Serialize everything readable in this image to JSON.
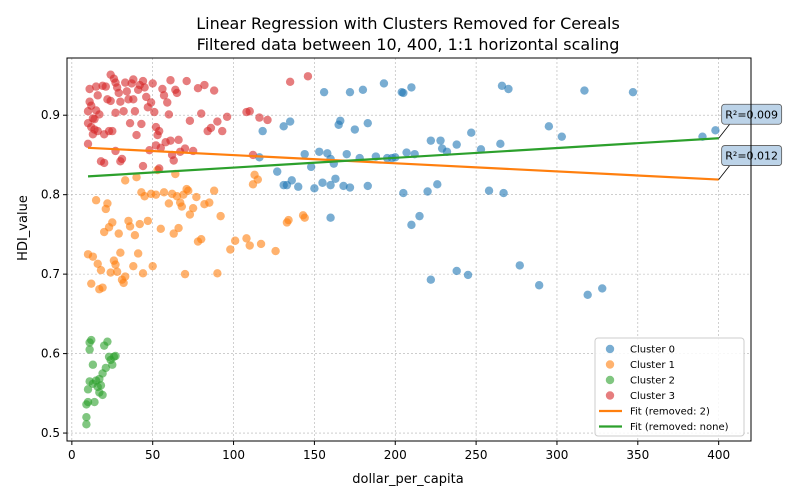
{
  "chart_data": {
    "type": "scatter",
    "title": "Linear Regression with Clusters Removed for Cereals",
    "subtitle": "Filtered data between 10, 400, 1:1 horizontal scaling",
    "xlabel": "dollar_per_capita",
    "ylabel": "HDI_value",
    "xlim": [
      -3,
      420
    ],
    "ylim": [
      0.49,
      0.972
    ],
    "x_ticks": [
      0,
      50,
      100,
      150,
      200,
      250,
      300,
      350,
      400
    ],
    "y_ticks": [
      0.5,
      0.6,
      0.7,
      0.8,
      0.9
    ],
    "grid": true,
    "legend_position": "lower-right",
    "series": [
      {
        "name": "Cluster 0",
        "color": "#1f77b4",
        "points": [
          [
            131,
            0.886
          ],
          [
            135,
            0.892
          ],
          [
            144,
            0.851
          ],
          [
            148,
            0.835
          ],
          [
            153,
            0.854
          ],
          [
            156,
            0.929
          ],
          [
            158,
            0.852
          ],
          [
            160,
            0.845
          ],
          [
            162,
            0.839
          ],
          [
            165,
            0.888
          ],
          [
            166,
            0.893
          ],
          [
            170,
            0.851
          ],
          [
            172,
            0.929
          ],
          [
            175,
            0.882
          ],
          [
            178,
            0.846
          ],
          [
            180,
            0.932
          ],
          [
            183,
            0.89
          ],
          [
            188,
            0.848
          ],
          [
            193,
            0.94
          ],
          [
            195,
            0.846
          ],
          [
            198,
            0.846
          ],
          [
            200,
            0.847
          ],
          [
            204,
            0.929
          ],
          [
            205,
            0.928
          ],
          [
            207,
            0.853
          ],
          [
            210,
            0.935
          ],
          [
            212,
            0.851
          ],
          [
            215,
            0.773
          ],
          [
            222,
            0.868
          ],
          [
            228,
            0.868
          ],
          [
            229,
            0.858
          ],
          [
            232,
            0.854
          ],
          [
            238,
            0.863
          ],
          [
            247,
            0.878
          ],
          [
            253,
            0.857
          ],
          [
            265,
            0.864
          ],
          [
            266,
            0.937
          ],
          [
            270,
            0.933
          ],
          [
            295,
            0.886
          ],
          [
            303,
            0.873
          ],
          [
            317,
            0.931
          ],
          [
            347,
            0.929
          ],
          [
            390,
            0.873
          ],
          [
            398,
            0.881
          ],
          [
            127,
            0.829
          ],
          [
            131,
            0.812
          ],
          [
            133,
            0.812
          ],
          [
            140,
            0.81
          ],
          [
            150,
            0.808
          ],
          [
            155,
            0.815
          ],
          [
            160,
            0.812
          ],
          [
            163,
            0.82
          ],
          [
            168,
            0.811
          ],
          [
            172,
            0.809
          ],
          [
            183,
            0.811
          ],
          [
            205,
            0.802
          ],
          [
            220,
            0.804
          ],
          [
            226,
            0.813
          ],
          [
            258,
            0.805
          ],
          [
            267,
            0.802
          ],
          [
            160,
            0.771
          ],
          [
            210,
            0.762
          ],
          [
            222,
            0.693
          ],
          [
            238,
            0.704
          ],
          [
            245,
            0.699
          ],
          [
            277,
            0.711
          ],
          [
            289,
            0.686
          ],
          [
            319,
            0.674
          ],
          [
            328,
            0.682
          ],
          [
            116,
            0.847
          ],
          [
            118,
            0.88
          ],
          [
            136,
            0.818
          ]
        ]
      },
      {
        "name": "Cluster 1",
        "color": "#ff7f0e",
        "points": [
          [
            10,
            0.725
          ],
          [
            12,
            0.688
          ],
          [
            13,
            0.722
          ],
          [
            15,
            0.793
          ],
          [
            16,
            0.713
          ],
          [
            17,
            0.681
          ],
          [
            18,
            0.705
          ],
          [
            19,
            0.683
          ],
          [
            20,
            0.753
          ],
          [
            21,
            0.782
          ],
          [
            22,
            0.789
          ],
          [
            23,
            0.759
          ],
          [
            24,
            0.702
          ],
          [
            25,
            0.765
          ],
          [
            26,
            0.717
          ],
          [
            27,
            0.712
          ],
          [
            28,
            0.703
          ],
          [
            29,
            0.751
          ],
          [
            30,
            0.727
          ],
          [
            31,
            0.693
          ],
          [
            32,
            0.689
          ],
          [
            33,
            0.697
          ],
          [
            33,
            0.818
          ],
          [
            35,
            0.767
          ],
          [
            36,
            0.76
          ],
          [
            38,
            0.71
          ],
          [
            39,
            0.749
          ],
          [
            40,
            0.822
          ],
          [
            41,
            0.726
          ],
          [
            42,
            0.763
          ],
          [
            43,
            0.803
          ],
          [
            44,
            0.701
          ],
          [
            45,
            0.798
          ],
          [
            47,
            0.767
          ],
          [
            49,
            0.801
          ],
          [
            50,
            0.71
          ],
          [
            52,
            0.8
          ],
          [
            53,
            0.831
          ],
          [
            55,
            0.757
          ],
          [
            57,
            0.803
          ],
          [
            60,
            0.789
          ],
          [
            62,
            0.801
          ],
          [
            63,
            0.751
          ],
          [
            64,
            0.826
          ],
          [
            65,
            0.798
          ],
          [
            66,
            0.758
          ],
          [
            67,
            0.79
          ],
          [
            68,
            0.785
          ],
          [
            69,
            0.8
          ],
          [
            70,
            0.7
          ],
          [
            71,
            0.807
          ],
          [
            72,
            0.805
          ],
          [
            73,
            0.775
          ],
          [
            75,
            0.783
          ],
          [
            77,
            0.797
          ],
          [
            78,
            0.741
          ],
          [
            80,
            0.744
          ],
          [
            82,
            0.788
          ],
          [
            85,
            0.79
          ],
          [
            88,
            0.805
          ],
          [
            90,
            0.701
          ],
          [
            92,
            0.773
          ],
          [
            98,
            0.731
          ],
          [
            101,
            0.742
          ],
          [
            108,
            0.745
          ],
          [
            110,
            0.736
          ],
          [
            112,
            0.813
          ],
          [
            113,
            0.825
          ],
          [
            115,
            0.819
          ],
          [
            117,
            0.738
          ],
          [
            126,
            0.729
          ],
          [
            133,
            0.765
          ],
          [
            134,
            0.768
          ],
          [
            143,
            0.774
          ],
          [
            144,
            0.771
          ]
        ]
      },
      {
        "name": "Cluster 2",
        "color": "#2ca02c",
        "points": [
          [
            9,
            0.536
          ],
          [
            9,
            0.511
          ],
          [
            9,
            0.52
          ],
          [
            10,
            0.539
          ],
          [
            10,
            0.555
          ],
          [
            11,
            0.565
          ],
          [
            11,
            0.605
          ],
          [
            11,
            0.614
          ],
          [
            12,
            0.617
          ],
          [
            13,
            0.586
          ],
          [
            13,
            0.562
          ],
          [
            14,
            0.539
          ],
          [
            15,
            0.566
          ],
          [
            16,
            0.558
          ],
          [
            17,
            0.551
          ],
          [
            17,
            0.568
          ],
          [
            18,
            0.56
          ],
          [
            19,
            0.575
          ],
          [
            19,
            0.548
          ],
          [
            20,
            0.61
          ],
          [
            21,
            0.582
          ],
          [
            22,
            0.615
          ],
          [
            23,
            0.596
          ],
          [
            24,
            0.592
          ],
          [
            25,
            0.586
          ],
          [
            26,
            0.596
          ],
          [
            27,
            0.597
          ]
        ]
      },
      {
        "name": "Cluster 3",
        "color": "#d62728",
        "points": [
          [
            10,
            0.905
          ],
          [
            10,
            0.89
          ],
          [
            10,
            0.864
          ],
          [
            11,
            0.933
          ],
          [
            11,
            0.917
          ],
          [
            12,
            0.912
          ],
          [
            12,
            0.885
          ],
          [
            13,
            0.896
          ],
          [
            13,
            0.876
          ],
          [
            14,
            0.895
          ],
          [
            14,
            0.882
          ],
          [
            15,
            0.936
          ],
          [
            15,
            0.906
          ],
          [
            16,
            0.88
          ],
          [
            16,
            0.925
          ],
          [
            17,
            0.901
          ],
          [
            18,
            0.842
          ],
          [
            19,
            0.937
          ],
          [
            20,
            0.876
          ],
          [
            21,
            0.936
          ],
          [
            22,
            0.92
          ],
          [
            23,
            0.88
          ],
          [
            24,
            0.951
          ],
          [
            24,
            0.918
          ],
          [
            25,
            0.88
          ],
          [
            26,
            0.946
          ],
          [
            27,
            0.941
          ],
          [
            27,
            0.903
          ],
          [
            28,
            0.935
          ],
          [
            29,
            0.928
          ],
          [
            30,
            0.917
          ],
          [
            31,
            0.845
          ],
          [
            32,
            0.905
          ],
          [
            33,
            0.941
          ],
          [
            34,
            0.93
          ],
          [
            35,
            0.92
          ],
          [
            36,
            0.89
          ],
          [
            37,
            0.94
          ],
          [
            38,
            0.945
          ],
          [
            38,
            0.92
          ],
          [
            39,
            0.905
          ],
          [
            40,
            0.875
          ],
          [
            41,
            0.932
          ],
          [
            42,
            0.938
          ],
          [
            43,
            0.889
          ],
          [
            44,
            0.943
          ],
          [
            45,
            0.935
          ],
          [
            46,
            0.923
          ],
          [
            47,
            0.91
          ],
          [
            48,
            0.856
          ],
          [
            49,
            0.916
          ],
          [
            50,
            0.94
          ],
          [
            51,
            0.904
          ],
          [
            52,
            0.885
          ],
          [
            53,
            0.875
          ],
          [
            54,
            0.88
          ],
          [
            55,
            0.859
          ],
          [
            56,
            0.933
          ],
          [
            57,
            0.925
          ],
          [
            58,
            0.866
          ],
          [
            59,
            0.916
          ],
          [
            60,
            0.901
          ],
          [
            61,
            0.944
          ],
          [
            62,
            0.85
          ],
          [
            63,
            0.843
          ],
          [
            64,
            0.932
          ],
          [
            65,
            0.928
          ],
          [
            66,
            0.869
          ],
          [
            67,
            0.854
          ],
          [
            70,
            0.858
          ],
          [
            71,
            0.943
          ],
          [
            73,
            0.893
          ],
          [
            75,
            0.855
          ],
          [
            78,
            0.934
          ],
          [
            80,
            0.902
          ],
          [
            82,
            0.938
          ],
          [
            84,
            0.88
          ],
          [
            86,
            0.884
          ],
          [
            88,
            0.931
          ],
          [
            90,
            0.892
          ],
          [
            93,
            0.88
          ],
          [
            96,
            0.898
          ],
          [
            108,
            0.904
          ],
          [
            110,
            0.905
          ],
          [
            112,
            0.85
          ],
          [
            116,
            0.897
          ],
          [
            121,
            0.894
          ],
          [
            135,
            0.942
          ],
          [
            146,
            0.949
          ],
          [
            20,
            0.84
          ],
          [
            27,
            0.855
          ],
          [
            30,
            0.842
          ],
          [
            44,
            0.836
          ],
          [
            52,
            0.862
          ],
          [
            61,
            0.868
          ],
          [
            54,
            0.833
          ]
        ]
      }
    ],
    "fit_lines": [
      {
        "name": "Fit (removed: 2)",
        "color": "#ff7f0e",
        "x": [
          10,
          400
        ],
        "y": [
          0.859,
          0.819
        ],
        "annotation": "R²=0.012",
        "annotation_point": [
          400,
          0.819
        ]
      },
      {
        "name": "Fit (removed: none)",
        "color": "#2ca02c",
        "x": [
          10,
          400
        ],
        "y": [
          0.823,
          0.871
        ],
        "annotation": "R²=0.009",
        "annotation_point": [
          400,
          0.871
        ]
      }
    ]
  }
}
